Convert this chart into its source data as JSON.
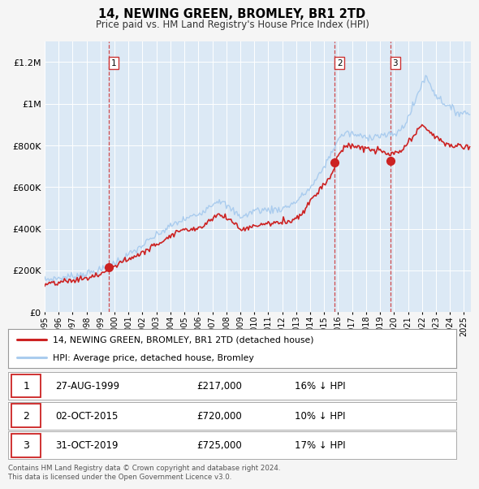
{
  "title": "14, NEWING GREEN, BROMLEY, BR1 2TD",
  "subtitle": "Price paid vs. HM Land Registry's House Price Index (HPI)",
  "fig_bg_color": "#f5f5f5",
  "plot_bg_color": "#dce9f5",
  "hpi_color": "#aaccee",
  "price_color": "#cc2222",
  "grid_color": "#ffffff",
  "vline_color": "#cc2222",
  "ylim": [
    0,
    1300000
  ],
  "yticks": [
    0,
    200000,
    400000,
    600000,
    800000,
    1000000,
    1200000
  ],
  "ytick_labels": [
    "£0",
    "£200K",
    "£400K",
    "£600K",
    "£800K",
    "£1M",
    "£1.2M"
  ],
  "sale_dates": [
    "1999-08-27",
    "2015-10-02",
    "2019-10-31"
  ],
  "sale_prices": [
    217000,
    720000,
    725000
  ],
  "sale_labels": [
    "1",
    "2",
    "3"
  ],
  "sale_info": [
    {
      "num": "1",
      "date": "27-AUG-1999",
      "price": "£217,000",
      "change": "16% ↓ HPI"
    },
    {
      "num": "2",
      "date": "02-OCT-2015",
      "price": "£720,000",
      "change": "10% ↓ HPI"
    },
    {
      "num": "3",
      "date": "31-OCT-2019",
      "price": "£725,000",
      "change": "17% ↓ HPI"
    }
  ],
  "legend_line1": "14, NEWING GREEN, BROMLEY, BR1 2TD (detached house)",
  "legend_line2": "HPI: Average price, detached house, Bromley",
  "footer": "Contains HM Land Registry data © Crown copyright and database right 2024.\nThis data is licensed under the Open Government Licence v3.0.",
  "xstart_year": 1995,
  "xend_year": 2025,
  "hpi_keypoints": [
    [
      1995.0,
      155000
    ],
    [
      1996.0,
      163000
    ],
    [
      1997.0,
      172000
    ],
    [
      1998.0,
      185000
    ],
    [
      1999.0,
      200000
    ],
    [
      1999.7,
      225000
    ],
    [
      2000.5,
      255000
    ],
    [
      2001.5,
      295000
    ],
    [
      2002.5,
      345000
    ],
    [
      2003.5,
      390000
    ],
    [
      2004.2,
      420000
    ],
    [
      2005.0,
      445000
    ],
    [
      2006.0,
      470000
    ],
    [
      2007.0,
      520000
    ],
    [
      2007.5,
      540000
    ],
    [
      2008.0,
      510000
    ],
    [
      2009.0,
      460000
    ],
    [
      2009.5,
      465000
    ],
    [
      2010.0,
      490000
    ],
    [
      2011.0,
      490000
    ],
    [
      2012.0,
      495000
    ],
    [
      2013.0,
      530000
    ],
    [
      2014.0,
      595000
    ],
    [
      2014.5,
      640000
    ],
    [
      2015.0,
      700000
    ],
    [
      2015.5,
      760000
    ],
    [
      2016.0,
      830000
    ],
    [
      2016.5,
      860000
    ],
    [
      2017.0,
      855000
    ],
    [
      2017.5,
      845000
    ],
    [
      2018.0,
      840000
    ],
    [
      2018.5,
      845000
    ],
    [
      2019.0,
      848000
    ],
    [
      2019.5,
      848000
    ],
    [
      2020.0,
      852000
    ],
    [
      2020.5,
      875000
    ],
    [
      2021.0,
      930000
    ],
    [
      2021.5,
      1010000
    ],
    [
      2022.0,
      1100000
    ],
    [
      2022.3,
      1130000
    ],
    [
      2022.7,
      1080000
    ],
    [
      2023.0,
      1040000
    ],
    [
      2023.5,
      1010000
    ],
    [
      2024.0,
      980000
    ],
    [
      2024.5,
      960000
    ],
    [
      2025.3,
      955000
    ]
  ],
  "price_keypoints": [
    [
      1995.0,
      130000
    ],
    [
      1996.0,
      140000
    ],
    [
      1997.0,
      152000
    ],
    [
      1998.0,
      163000
    ],
    [
      1999.0,
      180000
    ],
    [
      1999.7,
      215000
    ],
    [
      2000.5,
      240000
    ],
    [
      2001.5,
      268000
    ],
    [
      2002.5,
      305000
    ],
    [
      2003.5,
      345000
    ],
    [
      2004.0,
      370000
    ],
    [
      2004.6,
      390000
    ],
    [
      2005.5,
      398000
    ],
    [
      2006.0,
      405000
    ],
    [
      2006.5,
      420000
    ],
    [
      2007.0,
      455000
    ],
    [
      2007.5,
      468000
    ],
    [
      2008.0,
      450000
    ],
    [
      2008.5,
      435000
    ],
    [
      2009.0,
      398000
    ],
    [
      2009.5,
      400000
    ],
    [
      2010.0,
      415000
    ],
    [
      2011.0,
      425000
    ],
    [
      2012.0,
      430000
    ],
    [
      2013.0,
      450000
    ],
    [
      2013.5,
      480000
    ],
    [
      2014.0,
      535000
    ],
    [
      2014.5,
      575000
    ],
    [
      2015.0,
      615000
    ],
    [
      2015.5,
      655000
    ],
    [
      2015.75,
      700000
    ],
    [
      2016.0,
      758000
    ],
    [
      2016.5,
      790000
    ],
    [
      2017.0,
      800000
    ],
    [
      2017.5,
      793000
    ],
    [
      2018.0,
      782000
    ],
    [
      2018.5,
      778000
    ],
    [
      2019.0,
      774000
    ],
    [
      2019.5,
      758000
    ],
    [
      2020.0,
      758000
    ],
    [
      2020.5,
      772000
    ],
    [
      2021.0,
      808000
    ],
    [
      2021.5,
      855000
    ],
    [
      2022.0,
      893000
    ],
    [
      2022.3,
      885000
    ],
    [
      2022.7,
      858000
    ],
    [
      2023.0,
      838000
    ],
    [
      2023.5,
      815000
    ],
    [
      2024.0,
      800000
    ],
    [
      2024.5,
      798000
    ],
    [
      2025.3,
      792000
    ]
  ]
}
